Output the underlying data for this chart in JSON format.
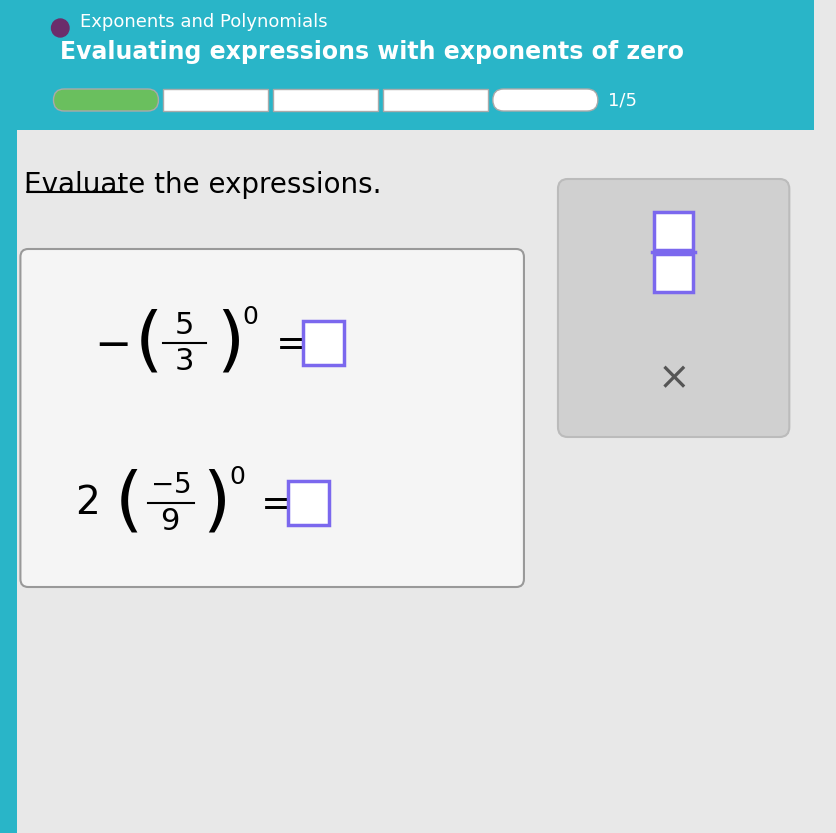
{
  "title_topic": "Exponents and Polynomials",
  "title_sub": "Evaluating expressions with exponents of zero",
  "progress_text": "1/5",
  "progress_filled": 1,
  "progress_total": 5,
  "header_bg": "#29b5c8",
  "header_text_color": "#ffffff",
  "body_bg": "#e8e8e8",
  "bullet_color": "#6b2d6b",
  "instruction": "Evaluate the expressions.",
  "instruction_color": "#000000",
  "box_bg": "#f5f5f5",
  "box_border": "#999999",
  "eq1_neg": "-",
  "eq1_num": "5",
  "eq1_den": "3",
  "eq1_exp": "0",
  "eq1_color": "#000000",
  "eq2_coeff": "2",
  "eq2_neg": "-",
  "eq2_num": "5",
  "eq2_den": "9",
  "eq2_exp": "0",
  "eq2_color": "#000000",
  "answer_box_color": "#7b68ee",
  "sidebar_bg": "#d0d0d0",
  "fraction_icon_color": "#7b68ee",
  "x_color": "#555555",
  "progress_bar_filled_color": "#6abf5e",
  "progress_bar_empty_color": "#ffffff",
  "progress_bar_border": "#aaaaaa"
}
